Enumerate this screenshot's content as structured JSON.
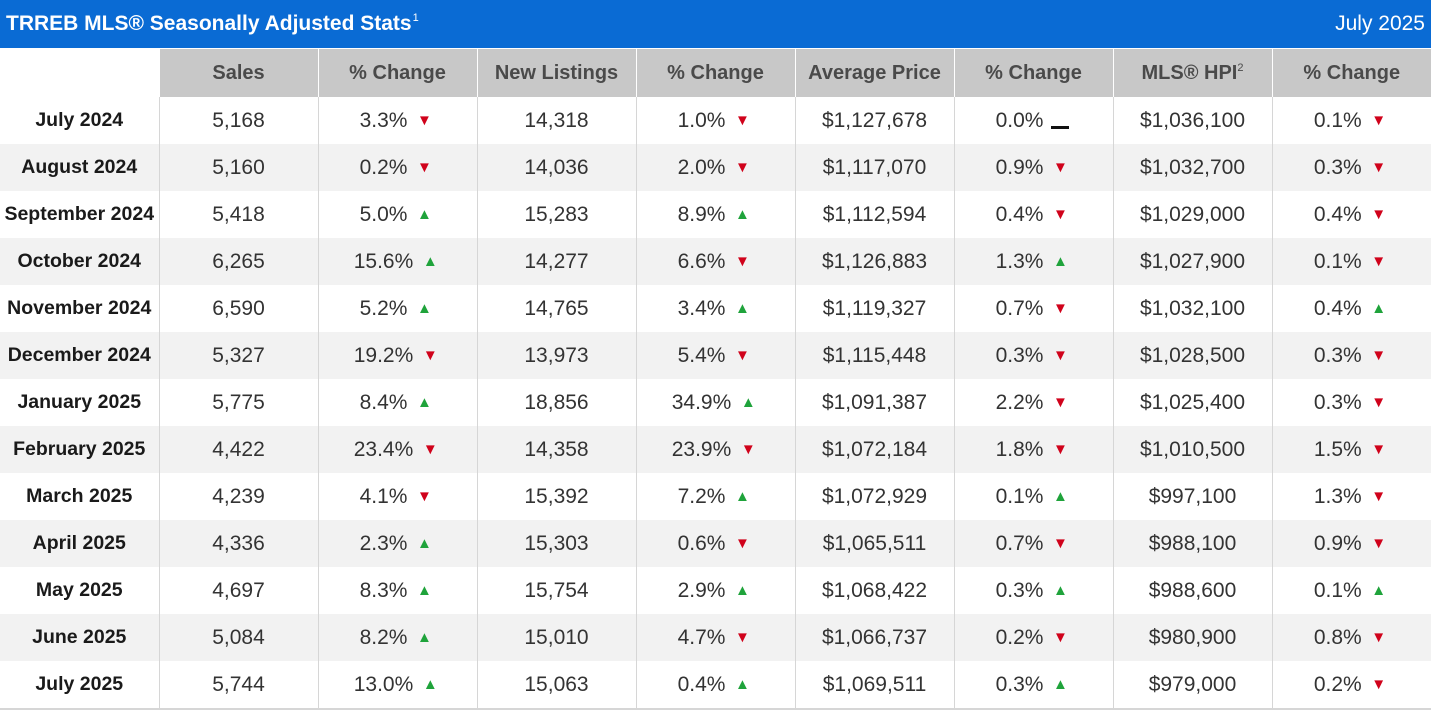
{
  "header": {
    "title": "TRREB MLS® Seasonally Adjusted Stats",
    "title_footnote": "1",
    "date": "July 2025"
  },
  "colors": {
    "title_bar": "#0a6bd4",
    "header_bg": "#c8c8c8",
    "up": "#1fa33b",
    "down": "#d0021b",
    "flat": "#111111"
  },
  "chart_data": {
    "type": "table",
    "columns": [
      {
        "label": "Sales",
        "footnote": ""
      },
      {
        "label": "% Change",
        "footnote": ""
      },
      {
        "label": "New Listings",
        "footnote": ""
      },
      {
        "label": "% Change",
        "footnote": ""
      },
      {
        "label": "Average Price",
        "footnote": ""
      },
      {
        "label": "% Change",
        "footnote": ""
      },
      {
        "label": "MLS® HPI",
        "footnote": "2"
      },
      {
        "label": "% Change",
        "footnote": ""
      }
    ],
    "rows": [
      {
        "month": "July 2024",
        "sales": "5,168",
        "sales_pct": "3.3%",
        "sales_dir": "down",
        "listings": "14,318",
        "listings_pct": "1.0%",
        "listings_dir": "down",
        "avg_price": "$1,127,678",
        "avg_price_pct": "0.0%",
        "avg_price_dir": "flat",
        "hpi": "$1,036,100",
        "hpi_pct": "0.1%",
        "hpi_dir": "down"
      },
      {
        "month": "August 2024",
        "sales": "5,160",
        "sales_pct": "0.2%",
        "sales_dir": "down",
        "listings": "14,036",
        "listings_pct": "2.0%",
        "listings_dir": "down",
        "avg_price": "$1,117,070",
        "avg_price_pct": "0.9%",
        "avg_price_dir": "down",
        "hpi": "$1,032,700",
        "hpi_pct": "0.3%",
        "hpi_dir": "down"
      },
      {
        "month": "September 2024",
        "sales": "5,418",
        "sales_pct": "5.0%",
        "sales_dir": "up",
        "listings": "15,283",
        "listings_pct": "8.9%",
        "listings_dir": "up",
        "avg_price": "$1,112,594",
        "avg_price_pct": "0.4%",
        "avg_price_dir": "down",
        "hpi": "$1,029,000",
        "hpi_pct": "0.4%",
        "hpi_dir": "down"
      },
      {
        "month": "October 2024",
        "sales": "6,265",
        "sales_pct": "15.6%",
        "sales_dir": "up",
        "listings": "14,277",
        "listings_pct": "6.6%",
        "listings_dir": "down",
        "avg_price": "$1,126,883",
        "avg_price_pct": "1.3%",
        "avg_price_dir": "up",
        "hpi": "$1,027,900",
        "hpi_pct": "0.1%",
        "hpi_dir": "down"
      },
      {
        "month": "November 2024",
        "sales": "6,590",
        "sales_pct": "5.2%",
        "sales_dir": "up",
        "listings": "14,765",
        "listings_pct": "3.4%",
        "listings_dir": "up",
        "avg_price": "$1,119,327",
        "avg_price_pct": "0.7%",
        "avg_price_dir": "down",
        "hpi": "$1,032,100",
        "hpi_pct": "0.4%",
        "hpi_dir": "up"
      },
      {
        "month": "December 2024",
        "sales": "5,327",
        "sales_pct": "19.2%",
        "sales_dir": "down",
        "listings": "13,973",
        "listings_pct": "5.4%",
        "listings_dir": "down",
        "avg_price": "$1,115,448",
        "avg_price_pct": "0.3%",
        "avg_price_dir": "down",
        "hpi": "$1,028,500",
        "hpi_pct": "0.3%",
        "hpi_dir": "down"
      },
      {
        "month": "January 2025",
        "sales": "5,775",
        "sales_pct": "8.4%",
        "sales_dir": "up",
        "listings": "18,856",
        "listings_pct": "34.9%",
        "listings_dir": "up",
        "avg_price": "$1,091,387",
        "avg_price_pct": "2.2%",
        "avg_price_dir": "down",
        "hpi": "$1,025,400",
        "hpi_pct": "0.3%",
        "hpi_dir": "down"
      },
      {
        "month": "February 2025",
        "sales": "4,422",
        "sales_pct": "23.4%",
        "sales_dir": "down",
        "listings": "14,358",
        "listings_pct": "23.9%",
        "listings_dir": "down",
        "avg_price": "$1,072,184",
        "avg_price_pct": "1.8%",
        "avg_price_dir": "down",
        "hpi": "$1,010,500",
        "hpi_pct": "1.5%",
        "hpi_dir": "down"
      },
      {
        "month": "March 2025",
        "sales": "4,239",
        "sales_pct": "4.1%",
        "sales_dir": "down",
        "listings": "15,392",
        "listings_pct": "7.2%",
        "listings_dir": "up",
        "avg_price": "$1,072,929",
        "avg_price_pct": "0.1%",
        "avg_price_dir": "up",
        "hpi": "$997,100",
        "hpi_pct": "1.3%",
        "hpi_dir": "down"
      },
      {
        "month": "April 2025",
        "sales": "4,336",
        "sales_pct": "2.3%",
        "sales_dir": "up",
        "listings": "15,303",
        "listings_pct": "0.6%",
        "listings_dir": "down",
        "avg_price": "$1,065,511",
        "avg_price_pct": "0.7%",
        "avg_price_dir": "down",
        "hpi": "$988,100",
        "hpi_pct": "0.9%",
        "hpi_dir": "down"
      },
      {
        "month": "May 2025",
        "sales": "4,697",
        "sales_pct": "8.3%",
        "sales_dir": "up",
        "listings": "15,754",
        "listings_pct": "2.9%",
        "listings_dir": "up",
        "avg_price": "$1,068,422",
        "avg_price_pct": "0.3%",
        "avg_price_dir": "up",
        "hpi": "$988,600",
        "hpi_pct": "0.1%",
        "hpi_dir": "up"
      },
      {
        "month": "June 2025",
        "sales": "5,084",
        "sales_pct": "8.2%",
        "sales_dir": "up",
        "listings": "15,010",
        "listings_pct": "4.7%",
        "listings_dir": "down",
        "avg_price": "$1,066,737",
        "avg_price_pct": "0.2%",
        "avg_price_dir": "down",
        "hpi": "$980,900",
        "hpi_pct": "0.8%",
        "hpi_dir": "down"
      },
      {
        "month": "July 2025",
        "sales": "5,744",
        "sales_pct": "13.0%",
        "sales_dir": "up",
        "listings": "15,063",
        "listings_pct": "0.4%",
        "listings_dir": "up",
        "avg_price": "$1,069,511",
        "avg_price_pct": "0.3%",
        "avg_price_dir": "up",
        "hpi": "$979,000",
        "hpi_pct": "0.2%",
        "hpi_dir": "down"
      }
    ]
  }
}
